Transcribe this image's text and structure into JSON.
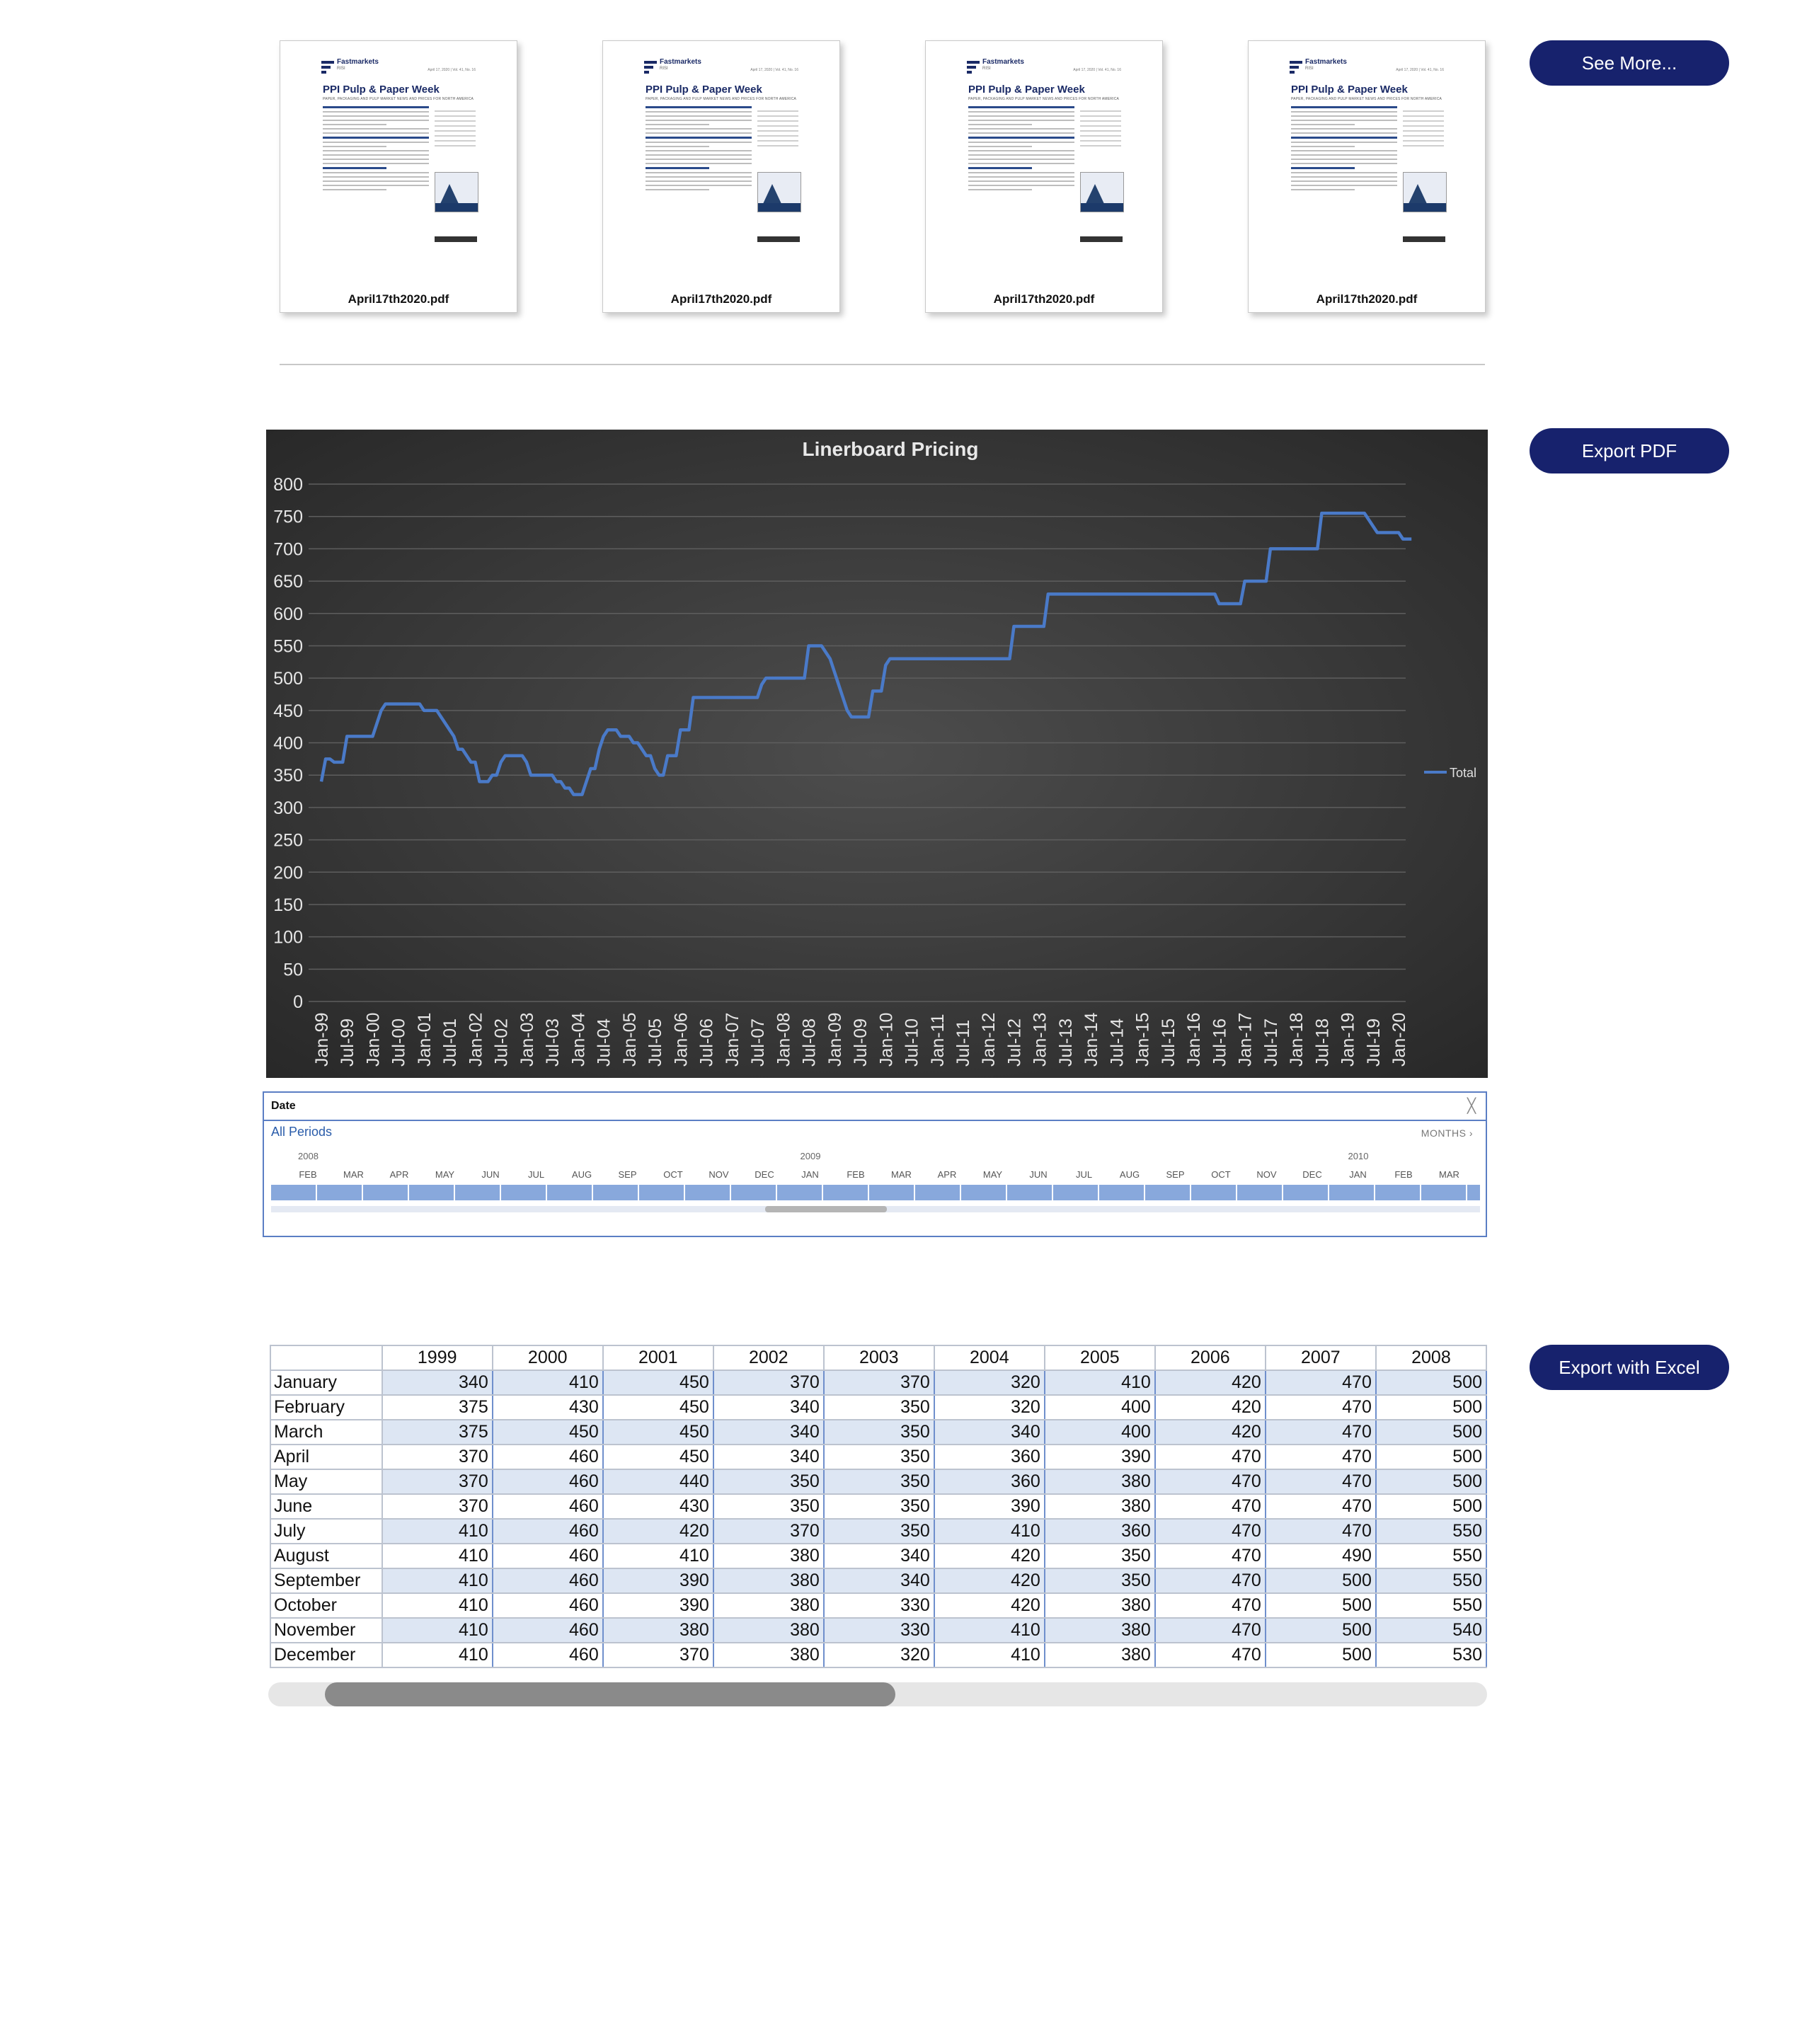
{
  "documents": [
    {
      "filename": "April17th2020.pdf",
      "brand": "Fastmarkets",
      "brand_sub": "RISI",
      "issue_date": "April 17, 2020 | Vol. 41, No. 16",
      "title": "PPI Pulp & Paper Week",
      "subtitle": "PAPER, PACKAGING AND PULP MARKET NEWS AND PRICES FOR NORTH AMERICA"
    },
    {
      "filename": "April17th2020.pdf",
      "brand": "Fastmarkets",
      "brand_sub": "RISI",
      "issue_date": "April 17, 2020 | Vol. 41, No. 16",
      "title": "PPI Pulp & Paper Week",
      "subtitle": "PAPER, PACKAGING AND PULP MARKET NEWS AND PRICES FOR NORTH AMERICA"
    },
    {
      "filename": "April17th2020.pdf",
      "brand": "Fastmarkets",
      "brand_sub": "RISI",
      "issue_date": "April 17, 2020 | Vol. 41, No. 16",
      "title": "PPI Pulp & Paper Week",
      "subtitle": "PAPER, PACKAGING AND PULP MARKET NEWS AND PRICES FOR NORTH AMERICA"
    },
    {
      "filename": "April17th2020.pdf",
      "brand": "Fastmarkets",
      "brand_sub": "RISI",
      "issue_date": "April 17, 2020 | Vol. 41, No. 16",
      "title": "PPI Pulp & Paper Week",
      "subtitle": "PAPER, PACKAGING AND PULP MARKET NEWS AND PRICES FOR NORTH AMERICA"
    }
  ],
  "buttons": {
    "see_more": "See More...",
    "export_pdf": "Export PDF",
    "export_excel": "Export with Excel"
  },
  "colors": {
    "button_bg": "#17226d",
    "line": "#4a7ac8",
    "chart_bg": "#3a3a3a"
  },
  "chart_data": {
    "type": "line",
    "title": "Linerboard Pricing",
    "legend": {
      "entries": [
        "Total"
      ],
      "placement": "right"
    },
    "ylim": [
      0,
      800
    ],
    "yticks": [
      0,
      50,
      100,
      150,
      200,
      250,
      300,
      350,
      400,
      450,
      500,
      550,
      600,
      650,
      700,
      750,
      800
    ],
    "grid": true,
    "x_tick_labels": [
      "Jan-99",
      "Jul-99",
      "Jan-00",
      "Jul-00",
      "Jan-01",
      "Jul-01",
      "Jan-02",
      "Jul-02",
      "Jan-03",
      "Jul-03",
      "Jan-04",
      "Jul-04",
      "Jan-05",
      "Jul-05",
      "Jan-06",
      "Jul-06",
      "Jan-07",
      "Jul-07",
      "Jan-08",
      "Jul-08",
      "Jan-09",
      "Jul-09",
      "Jan-10",
      "Jul-10",
      "Jan-11",
      "Jul-11",
      "Jan-12",
      "Jul-12",
      "Jan-13",
      "Jul-13",
      "Jan-14",
      "Jul-14",
      "Jan-15",
      "Jul-15",
      "Jan-16",
      "Jul-16",
      "Jan-17",
      "Jul-17",
      "Jan-18",
      "Jul-18",
      "Jan-19",
      "Jul-19",
      "Jan-20"
    ],
    "series": [
      {
        "name": "Total",
        "x_start": "Jan-99",
        "x_step": "month",
        "values": [
          340,
          375,
          375,
          370,
          370,
          370,
          410,
          410,
          410,
          410,
          410,
          410,
          410,
          430,
          450,
          460,
          460,
          460,
          460,
          460,
          460,
          460,
          460,
          460,
          450,
          450,
          450,
          450,
          440,
          430,
          420,
          410,
          390,
          390,
          380,
          370,
          370,
          340,
          340,
          340,
          350,
          350,
          370,
          380,
          380,
          380,
          380,
          380,
          370,
          350,
          350,
          350,
          350,
          350,
          350,
          340,
          340,
          330,
          330,
          320,
          320,
          320,
          340,
          360,
          360,
          390,
          410,
          420,
          420,
          420,
          410,
          410,
          410,
          400,
          400,
          390,
          380,
          380,
          360,
          350,
          350,
          380,
          380,
          380,
          420,
          420,
          420,
          470,
          470,
          470,
          470,
          470,
          470,
          470,
          470,
          470,
          470,
          470,
          470,
          470,
          470,
          470,
          470,
          490,
          500,
          500,
          500,
          500,
          500,
          500,
          500,
          500,
          500,
          500,
          550,
          550,
          550,
          550,
          540,
          530,
          510,
          490,
          470,
          450,
          440,
          440,
          440,
          440,
          440,
          480,
          480,
          480,
          520,
          530,
          530,
          530,
          530,
          530,
          530,
          530,
          530,
          530,
          530,
          530,
          530,
          530,
          530,
          530,
          530,
          530,
          530,
          530,
          530,
          530,
          530,
          530,
          530,
          530,
          530,
          530,
          530,
          530,
          580,
          580,
          580,
          580,
          580,
          580,
          580,
          580,
          630,
          630,
          630,
          630,
          630,
          630,
          630,
          630,
          630,
          630,
          630,
          630,
          630,
          630,
          630,
          630,
          630,
          630,
          630,
          630,
          630,
          630,
          630,
          630,
          630,
          630,
          630,
          630,
          630,
          630,
          630,
          630,
          630,
          630,
          630,
          630,
          630,
          630,
          630,
          630,
          615,
          615,
          615,
          615,
          615,
          615,
          650,
          650,
          650,
          650,
          650,
          650,
          700,
          700,
          700,
          700,
          700,
          700,
          700,
          700,
          700,
          700,
          700,
          700,
          755,
          755,
          755,
          755,
          755,
          755,
          755,
          755,
          755,
          755,
          755,
          745,
          735,
          725,
          725,
          725,
          725,
          725,
          725,
          715,
          715,
          715
        ]
      }
    ]
  },
  "slicer": {
    "title": "Date",
    "periods_label": "All Periods",
    "level_label": "MONTHS ›",
    "years": [
      {
        "label": "2008",
        "col": 1
      },
      {
        "label": "2009",
        "col": 12
      },
      {
        "label": "2010",
        "col": 24
      }
    ],
    "months": [
      "FEB",
      "MAR",
      "APR",
      "MAY",
      "JUN",
      "JUL",
      "AUG",
      "SEP",
      "OCT",
      "NOV",
      "DEC",
      "JAN",
      "FEB",
      "MAR",
      "APR",
      "MAY",
      "JUN",
      "JUL",
      "AUG",
      "SEP",
      "OCT",
      "NOV",
      "DEC",
      "JAN",
      "FEB",
      "MAR"
    ]
  },
  "table": {
    "columns": [
      "1999",
      "2000",
      "2001",
      "2002",
      "2003",
      "2004",
      "2005",
      "2006",
      "2007",
      "2008"
    ],
    "rows": [
      {
        "label": "January",
        "values": [
          340,
          410,
          450,
          370,
          370,
          320,
          410,
          420,
          470,
          500
        ]
      },
      {
        "label": "February",
        "values": [
          375,
          430,
          450,
          340,
          350,
          320,
          400,
          420,
          470,
          500
        ]
      },
      {
        "label": "March",
        "values": [
          375,
          450,
          450,
          340,
          350,
          340,
          400,
          420,
          470,
          500
        ]
      },
      {
        "label": "April",
        "values": [
          370,
          460,
          450,
          340,
          350,
          360,
          390,
          470,
          470,
          500
        ]
      },
      {
        "label": "May",
        "values": [
          370,
          460,
          440,
          350,
          350,
          360,
          380,
          470,
          470,
          500
        ]
      },
      {
        "label": "June",
        "values": [
          370,
          460,
          430,
          350,
          350,
          390,
          380,
          470,
          470,
          500
        ]
      },
      {
        "label": "July",
        "values": [
          410,
          460,
          420,
          370,
          350,
          410,
          360,
          470,
          470,
          550
        ]
      },
      {
        "label": "August",
        "values": [
          410,
          460,
          410,
          380,
          340,
          420,
          350,
          470,
          490,
          550
        ]
      },
      {
        "label": "September",
        "values": [
          410,
          460,
          390,
          380,
          340,
          420,
          350,
          470,
          500,
          550
        ]
      },
      {
        "label": "October",
        "values": [
          410,
          460,
          390,
          380,
          330,
          420,
          380,
          470,
          500,
          550
        ]
      },
      {
        "label": "November",
        "values": [
          410,
          460,
          380,
          380,
          330,
          410,
          380,
          470,
          500,
          540
        ]
      },
      {
        "label": "December",
        "values": [
          410,
          460,
          370,
          380,
          320,
          410,
          380,
          470,
          500,
          530
        ]
      }
    ]
  }
}
